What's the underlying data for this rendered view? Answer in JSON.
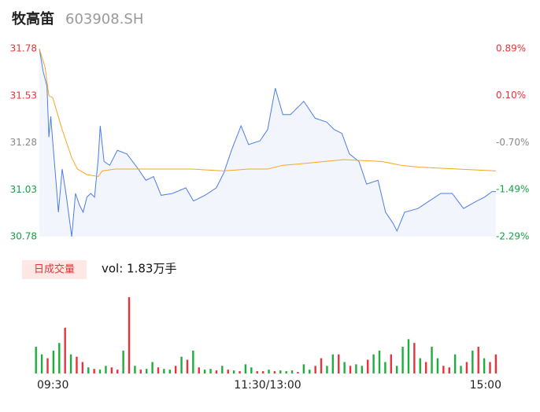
{
  "chart_data": [
    {
      "type": "line",
      "title": "牧高笛",
      "subtitle": "603908.SH",
      "xlim": [
        0,
        240
      ],
      "xticks": [
        {
          "value": 0,
          "label": "09:30"
        },
        {
          "value": 120,
          "label": "11:30/13:00"
        },
        {
          "value": 240,
          "label": "15:00"
        }
      ],
      "ylim": [
        30.78,
        31.78
      ],
      "yticks": [
        31.78,
        31.53,
        31.28,
        31.03,
        30.78
      ],
      "ytick_colors": [
        "#e8333a",
        "#e8333a",
        "#888888",
        "#1a9e48",
        "#1a9e48"
      ],
      "y2lim": [
        -2.29,
        0.89
      ],
      "y2ticks": [
        {
          "value": 0.89,
          "label": "0.89%"
        },
        {
          "value": 0.1,
          "label": "0.10%"
        },
        {
          "value": -0.7,
          "label": "-0.70%"
        },
        {
          "value": -1.49,
          "label": "-1.49%"
        },
        {
          "value": -2.29,
          "label": "-2.29%"
        }
      ],
      "grid": false,
      "fill": "#f3f5fd",
      "series": [
        {
          "color": "#4a7ee8",
          "x": [
            0,
            2,
            4,
            5,
            6,
            7,
            9,
            10,
            12,
            14,
            17,
            19,
            21,
            23,
            25,
            27,
            29,
            31,
            32,
            34,
            37,
            41,
            46,
            52,
            56,
            60,
            64,
            70,
            77,
            81,
            87,
            93,
            97,
            101,
            106,
            110,
            116,
            120,
            124,
            128,
            132,
            139,
            145,
            151,
            155,
            159,
            163,
            168,
            172,
            178,
            182,
            186,
            188,
            192,
            199,
            205,
            211,
            217,
            223,
            230,
            234,
            238,
            240
          ],
          "values": [
            31.78,
            31.66,
            31.58,
            31.31,
            31.42,
            31.29,
            31.04,
            30.91,
            31.14,
            31.01,
            30.78,
            31.01,
            30.95,
            30.91,
            30.99,
            31.01,
            30.99,
            31.2,
            31.37,
            31.18,
            31.16,
            31.24,
            31.22,
            31.14,
            31.08,
            31.1,
            31.0,
            31.01,
            31.04,
            30.97,
            31.0,
            31.04,
            31.12,
            31.24,
            31.37,
            31.27,
            31.29,
            31.35,
            31.57,
            31.43,
            31.43,
            31.5,
            31.41,
            31.39,
            31.35,
            31.33,
            31.22,
            31.18,
            31.06,
            31.08,
            30.91,
            30.85,
            30.81,
            30.91,
            30.93,
            30.97,
            31.01,
            31.01,
            30.93,
            30.97,
            30.99,
            31.02,
            31.02
          ]
        },
        {
          "color": "#f5a623",
          "x": [
            0,
            3,
            5,
            7,
            12,
            17,
            20,
            25,
            31,
            33,
            40,
            80,
            97,
            110,
            120,
            128,
            140,
            150,
            160,
            180,
            190,
            200,
            240
          ],
          "values": [
            31.78,
            31.68,
            31.53,
            31.52,
            31.35,
            31.2,
            31.14,
            31.11,
            31.1,
            31.13,
            31.14,
            31.14,
            31.13,
            31.14,
            31.14,
            31.16,
            31.17,
            31.18,
            31.19,
            31.18,
            31.16,
            31.15,
            31.13
          ]
        }
      ]
    },
    {
      "type": "bar",
      "label": "日成交量",
      "annotation": "vol: 1.83万手",
      "ylim": [
        0,
        100
      ],
      "series": [
        {
          "color": "#e8333a",
          "values": [
            null,
            null,
            20,
            null,
            null,
            60,
            null,
            22,
            15,
            null,
            6,
            null,
            null,
            8,
            5,
            null,
            100,
            null,
            5,
            null,
            null,
            8,
            null,
            null,
            10,
            null,
            18,
            null,
            8,
            null,
            null,
            4,
            null,
            5,
            null,
            3,
            null,
            null,
            3,
            3,
            null,
            3,
            null,
            null,
            null,
            2,
            null,
            null,
            10,
            20,
            null,
            null,
            25,
            null,
            10,
            null,
            null,
            18,
            null,
            null,
            null,
            25,
            null,
            null,
            null,
            40,
            null,
            15,
            null,
            null,
            10,
            8,
            null,
            null,
            15,
            null,
            35,
            null,
            15,
            25
          ]
        },
        {
          "color": "#1fae3e",
          "values": [
            35,
            25,
            null,
            30,
            40,
            null,
            25,
            null,
            null,
            8,
            null,
            5,
            10,
            null,
            null,
            30,
            null,
            10,
            null,
            6,
            15,
            null,
            6,
            5,
            null,
            22,
            null,
            30,
            null,
            5,
            6,
            null,
            10,
            null,
            4,
            null,
            12,
            8,
            null,
            null,
            5,
            null,
            4,
            3,
            4,
            null,
            12,
            5,
            null,
            null,
            10,
            25,
            null,
            15,
            null,
            12,
            10,
            null,
            25,
            30,
            15,
            null,
            10,
            35,
            45,
            null,
            20,
            null,
            35,
            20,
            null,
            null,
            25,
            10,
            null,
            30,
            null,
            20,
            null,
            null
          ]
        }
      ]
    }
  ]
}
